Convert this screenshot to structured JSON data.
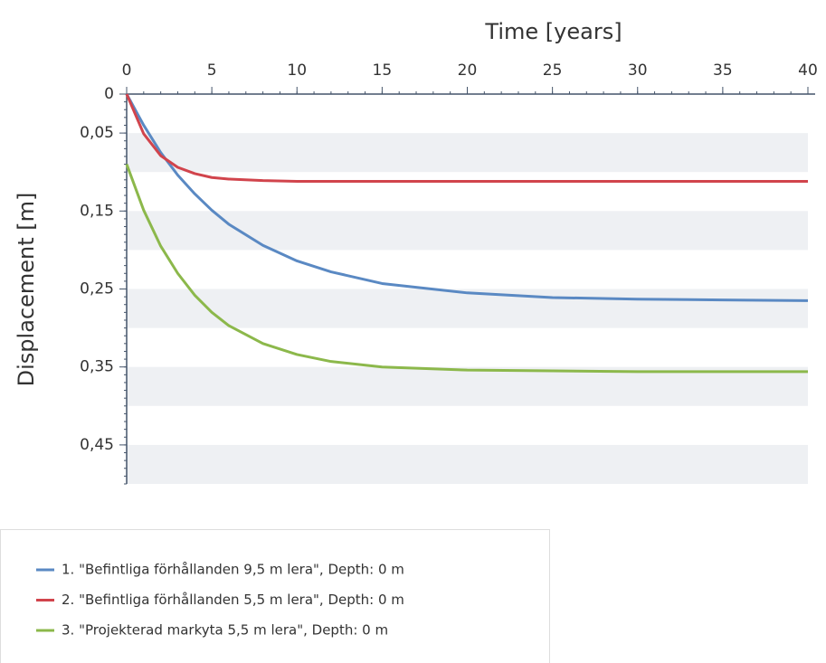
{
  "chart_data": {
    "type": "line",
    "x_label": "Time [years]",
    "y_label": "Displacement [m]",
    "x": [
      0,
      1,
      2,
      3,
      4,
      5,
      6,
      8,
      10,
      12,
      15,
      20,
      25,
      30,
      35,
      40
    ],
    "series": [
      {
        "name": "1. \"Befintliga förhållanden 9,5 m lera\", Depth: 0 m",
        "color": "#5a89c3",
        "values": [
          0,
          0.04,
          0.075,
          0.104,
          0.128,
          0.149,
          0.167,
          0.194,
          0.214,
          0.228,
          0.243,
          0.255,
          0.261,
          0.263,
          0.264,
          0.265
        ]
      },
      {
        "name": "2. \"Befintliga förhållanden 5,5 m lera\", Depth: 0 m",
        "color": "#d1444c",
        "values": [
          0,
          0.051,
          0.079,
          0.094,
          0.102,
          0.107,
          0.109,
          0.111,
          0.112,
          0.112,
          0.112,
          0.112,
          0.112,
          0.112,
          0.112,
          0.112
        ]
      },
      {
        "name": "3. \"Projekterad markyta 5,5 m lera\", Depth: 0 m",
        "color": "#8cb84b",
        "values": [
          0.09,
          0.149,
          0.195,
          0.23,
          0.258,
          0.28,
          0.297,
          0.32,
          0.334,
          0.343,
          0.35,
          0.354,
          0.355,
          0.356,
          0.356,
          0.356
        ]
      }
    ],
    "xlim": [
      0,
      40
    ],
    "xticks": [
      0,
      5,
      10,
      15,
      20,
      25,
      30,
      35,
      40
    ],
    "ylim": [
      0,
      0.5
    ],
    "yticks": [
      0,
      {
        "value": 0.05,
        "label": "0,05"
      },
      {
        "value": 0.15,
        "label": "0,15"
      },
      {
        "value": 0.25,
        "label": "0,25"
      },
      {
        "value": 0.35,
        "label": "0,35"
      },
      {
        "value": 0.45,
        "label": "0,45"
      }
    ],
    "y_inverted": true,
    "x_axis_position": "top",
    "banded": true
  }
}
